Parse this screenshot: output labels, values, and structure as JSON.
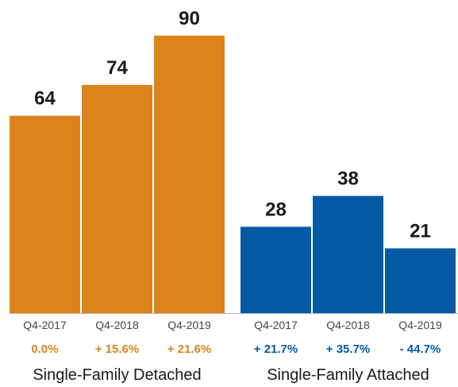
{
  "colors": {
    "detached": "#DB841C",
    "attached": "#035BA5",
    "axis": "#b3b3b3"
  },
  "chart_data": {
    "type": "bar",
    "ylim": [
      0,
      100
    ],
    "groups": [
      {
        "label": "Single-Family Detached",
        "color": "#DB841C",
        "categories": [
          "Q4-2017",
          "Q4-2018",
          "Q4-2019"
        ],
        "values": [
          64,
          74,
          90
        ],
        "changes": [
          "0.0%",
          "+ 15.6%",
          "+ 21.6%"
        ]
      },
      {
        "label": "Single-Family Attached",
        "color": "#035BA5",
        "categories": [
          "Q4-2017",
          "Q4-2018",
          "Q4-2019"
        ],
        "values": [
          28,
          38,
          21
        ],
        "changes": [
          "+ 21.7%",
          "+ 35.7%",
          "- 44.7%"
        ]
      }
    ]
  }
}
